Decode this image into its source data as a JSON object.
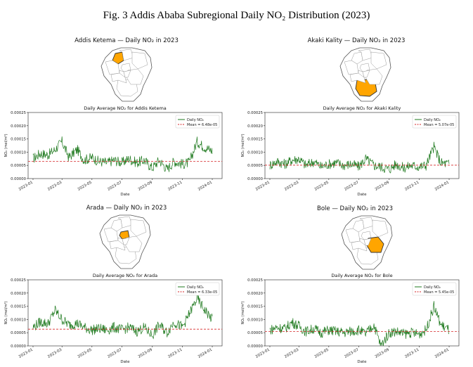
{
  "figure_title": "Fig. 3 Addis Ababa Subregional Daily NO₂ Distribution (2023)",
  "colors": {
    "line": "#1f7a1f",
    "mean": "#d62728",
    "highlight": "#ffa500",
    "outline": "#555555"
  },
  "panels": [
    {
      "map_title": "Addis Ketema — Daily NO₂ in 2023",
      "highlight": "addis-ketema"
    },
    {
      "map_title": "Akaki Kality — Daily NO₂ in 2023",
      "highlight": "akaki-kality"
    },
    {
      "map_title": "Arada — Daily NO₂ in 2023",
      "highlight": "arada"
    },
    {
      "map_title": "Bole — Daily NO₂ in 2023",
      "highlight": "bole"
    }
  ],
  "chart_data": [
    {
      "type": "line",
      "title": "Daily Average NO₂ for Addis Ketema",
      "xlabel": "Date",
      "ylabel": "NO₂ (mol/m²)",
      "ylim": [
        0,
        0.00025
      ],
      "yticks": [
        "0.00000",
        "0.00005",
        "0.00010",
        "0.00015",
        "0.00020",
        "0.00025"
      ],
      "xticks": [
        "2023-01",
        "2023-03",
        "2023-05",
        "2023-07",
        "2023-09",
        "2023-11",
        "2024-01"
      ],
      "legend": {
        "position": "top-right",
        "line_label": "Daily NO₂",
        "mean_label": "Mean = 6.48e-05"
      },
      "mean": 6.48e-05,
      "series": [
        {
          "name": "Daily NO₂",
          "x": [
            "2023-01-01",
            "2023-01-15",
            "2023-02-01",
            "2023-02-15",
            "2023-03-01",
            "2023-03-15",
            "2023-04-01",
            "2023-04-15",
            "2023-05-01",
            "2023-05-15",
            "2023-06-01",
            "2023-06-15",
            "2023-07-01",
            "2023-07-15",
            "2023-08-01",
            "2023-08-15",
            "2023-09-01",
            "2023-09-15",
            "2023-10-01",
            "2023-10-15",
            "2023-11-01",
            "2023-11-15",
            "2023-12-01",
            "2023-12-15",
            "2024-01-01"
          ],
          "values": [
            7.5e-05,
            9.5e-05,
            9e-05,
            0.00011,
            0.00014,
            8e-05,
            0.00011,
            7e-05,
            8e-05,
            6.5e-05,
            6e-05,
            7e-05,
            6e-05,
            7.5e-05,
            6e-05,
            7e-05,
            4e-05,
            7e-05,
            3.5e-05,
            6.5e-05,
            5.5e-05,
            6e-05,
            0.00014,
            0.00012,
            0.000105
          ]
        }
      ]
    },
    {
      "type": "line",
      "title": "Daily Average NO₂ for Akaki Kality",
      "xlabel": "Date",
      "ylabel": "NO₂ (mol/m²)",
      "ylim": [
        0,
        0.00025
      ],
      "yticks": [
        "0.00000",
        "0.00005",
        "0.00010",
        "0.00015",
        "0.00020",
        "0.00025"
      ],
      "xticks": [
        "2023-01",
        "2023-03",
        "2023-05",
        "2023-07",
        "2023-09",
        "2023-11",
        "2024-01"
      ],
      "legend": {
        "position": "top-right",
        "line_label": "Daily NO₂",
        "mean_label": "Mean = 5.07e-05"
      },
      "mean": 5.07e-05,
      "series": [
        {
          "name": "Daily NO₂",
          "x": [
            "2023-01-01",
            "2023-01-15",
            "2023-02-01",
            "2023-02-15",
            "2023-03-01",
            "2023-03-15",
            "2023-04-01",
            "2023-04-15",
            "2023-05-01",
            "2023-05-15",
            "2023-06-01",
            "2023-06-15",
            "2023-07-01",
            "2023-07-15",
            "2023-08-01",
            "2023-08-15",
            "2023-09-01",
            "2023-09-15",
            "2023-10-01",
            "2023-10-15",
            "2023-11-01",
            "2023-11-15",
            "2023-12-01",
            "2023-12-15",
            "2024-01-01"
          ],
          "values": [
            5e-05,
            6.5e-05,
            5.5e-05,
            7e-05,
            7.5e-05,
            5e-05,
            6.5e-05,
            4.5e-05,
            5.5e-05,
            6e-05,
            5e-05,
            5.5e-05,
            4.5e-05,
            7.5e-05,
            5e-05,
            4.5e-05,
            3.5e-05,
            5.5e-05,
            4e-05,
            5e-05,
            4.5e-05,
            5e-05,
            0.00012,
            6e-05,
            5.5e-05
          ]
        }
      ]
    },
    {
      "type": "line",
      "title": "Daily Average NO₂ for Arada",
      "xlabel": "Date",
      "ylabel": "NO₂ (mol/m²)",
      "ylim": [
        0,
        0.00025
      ],
      "yticks": [
        "0.00000",
        "0.00005",
        "0.00010",
        "0.00015",
        "0.00020",
        "0.00025"
      ],
      "xticks": [
        "2023-01",
        "2023-03",
        "2023-05",
        "2023-07",
        "2023-09",
        "2023-11",
        "2024-01"
      ],
      "legend": {
        "position": "top-right",
        "line_label": "Daily NO₂",
        "mean_label": "Mean = 6.33e-05"
      },
      "mean": 6.33e-05,
      "series": [
        {
          "name": "Daily NO₂",
          "x": [
            "2023-01-01",
            "2023-01-15",
            "2023-02-01",
            "2023-02-15",
            "2023-03-01",
            "2023-03-15",
            "2023-04-01",
            "2023-04-15",
            "2023-05-01",
            "2023-05-15",
            "2023-06-01",
            "2023-06-15",
            "2023-07-01",
            "2023-07-15",
            "2023-08-01",
            "2023-08-15",
            "2023-09-01",
            "2023-09-15",
            "2023-10-01",
            "2023-10-15",
            "2023-11-01",
            "2023-11-15",
            "2023-12-01",
            "2023-12-15",
            "2024-01-01"
          ],
          "values": [
            7e-05,
            9e-05,
            8.5e-05,
            0.000135,
            0.0001,
            8e-05,
            8.5e-05,
            7e-05,
            6e-05,
            6.5e-05,
            6e-05,
            7e-05,
            6e-05,
            7e-05,
            5.5e-05,
            7e-05,
            4e-05,
            8e-05,
            5e-05,
            9e-05,
            7e-05,
            0.00012,
            0.00018,
            0.00014,
            0.0001
          ]
        }
      ]
    },
    {
      "type": "line",
      "title": "Daily Average NO₂ for Bole",
      "xlabel": "Date",
      "ylabel": "NO₂ (mol/m²)",
      "ylim": [
        0,
        0.00025
      ],
      "yticks": [
        "0.00000",
        "0.00005",
        "0.00010",
        "0.00015",
        "0.00020",
        "0.00025"
      ],
      "xticks": [
        "2023-01",
        "2023-03",
        "2023-05",
        "2023-07",
        "2023-09",
        "2023-11",
        "2024-01"
      ],
      "legend": {
        "position": "top-right",
        "line_label": "Daily NO₂",
        "mean_label": "Mean = 5.45e-05"
      },
      "mean": 5.45e-05,
      "series": [
        {
          "name": "Daily NO₂",
          "x": [
            "2023-01-01",
            "2023-01-15",
            "2023-02-01",
            "2023-02-15",
            "2023-03-01",
            "2023-03-15",
            "2023-04-01",
            "2023-04-15",
            "2023-05-01",
            "2023-05-15",
            "2023-06-01",
            "2023-06-15",
            "2023-07-01",
            "2023-07-15",
            "2023-08-01",
            "2023-08-15",
            "2023-09-01",
            "2023-09-15",
            "2023-10-01",
            "2023-10-15",
            "2023-11-01",
            "2023-11-15",
            "2023-12-01",
            "2023-12-15",
            "2024-01-01"
          ],
          "values": [
            6e-05,
            7e-05,
            6.5e-05,
            9e-05,
            7.5e-05,
            5.5e-05,
            6.5e-05,
            5e-05,
            6e-05,
            5.5e-05,
            5e-05,
            5.5e-05,
            6e-05,
            4.5e-05,
            8e-05,
            0.0,
            5e-05,
            5.5e-05,
            4.5e-05,
            5e-05,
            4.5e-05,
            6e-05,
            0.00015,
            8e-05,
            6e-05
          ]
        }
      ]
    }
  ]
}
